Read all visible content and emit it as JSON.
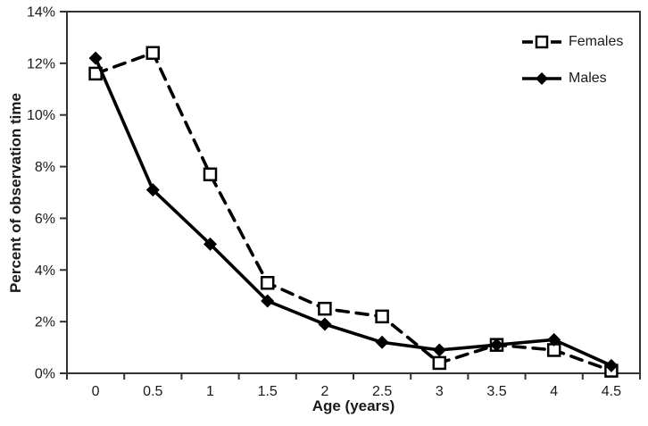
{
  "chart_data": {
    "type": "line",
    "title": "",
    "xlabel": "Age (years)",
    "ylabel": "Percent of observation time",
    "x_categories": [
      "0",
      "0.5",
      "1",
      "1.5",
      "2",
      "2.5",
      "3",
      "3.5",
      "4",
      "4.5"
    ],
    "y_ticks": [
      "0%",
      "2%",
      "4%",
      "6%",
      "8%",
      "10%",
      "12%",
      "14%"
    ],
    "ylim": [
      0,
      14
    ],
    "grid": false,
    "legend_position": "top-right-inside",
    "series": [
      {
        "name": "Females",
        "line_style": "dashed",
        "marker": "open-square",
        "color": "#000000",
        "values": [
          11.6,
          12.4,
          7.7,
          3.5,
          2.5,
          2.2,
          0.4,
          1.1,
          0.9,
          0.1
        ]
      },
      {
        "name": "Males",
        "line_style": "solid",
        "marker": "filled-diamond",
        "color": "#000000",
        "values": [
          12.2,
          7.1,
          5.0,
          2.8,
          1.9,
          1.2,
          0.9,
          1.1,
          1.3,
          0.3
        ]
      }
    ]
  },
  "colors": {
    "background": "#ffffff",
    "frame": "#333333",
    "text": "#1a1a1a",
    "series_line": "#000000"
  }
}
